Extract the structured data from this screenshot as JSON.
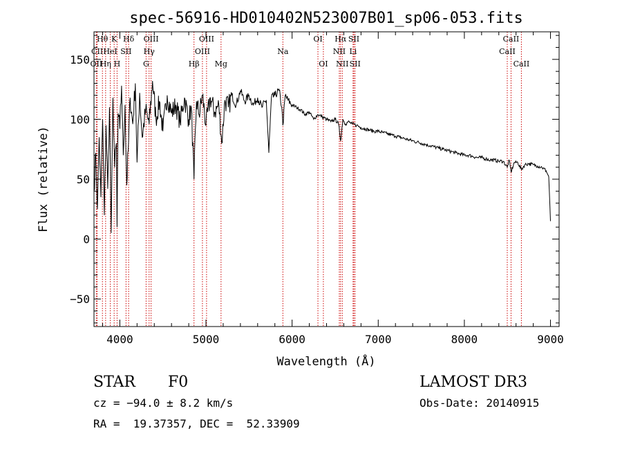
{
  "chart_data": {
    "type": "line",
    "title": "spec-56916-HD010402N523007B01_sp06-053.fits",
    "xlabel": "Wavelength (Å)",
    "ylabel": "Flux (relative)",
    "xlim": [
      3700,
      9100
    ],
    "ylim": [
      -73,
      173
    ],
    "xticks": [
      4000,
      5000,
      6000,
      7000,
      8000,
      9000
    ],
    "yticks": [
      -50,
      0,
      50,
      100,
      150
    ],
    "grid": false,
    "series": [
      {
        "name": "flux",
        "x": [
          3700,
          3720,
          3740,
          3760,
          3780,
          3800,
          3820,
          3840,
          3860,
          3880,
          3900,
          3920,
          3940,
          3960,
          3968,
          3980,
          4000,
          4020,
          4040,
          4060,
          4080,
          4102,
          4120,
          4150,
          4180,
          4200,
          4230,
          4260,
          4300,
          4340,
          4380,
          4420,
          4460,
          4500,
          4550,
          4600,
          4650,
          4700,
          4750,
          4800,
          4830,
          4861,
          4890,
          4920,
          4960,
          5000,
          5050,
          5100,
          5150,
          5183,
          5220,
          5260,
          5300,
          5350,
          5400,
          5450,
          5500,
          5550,
          5600,
          5650,
          5700,
          5730,
          5760,
          5800,
          5850,
          5880,
          5893,
          5920,
          5950,
          6000,
          6050,
          6100,
          6150,
          6200,
          6250,
          6300,
          6350,
          6400,
          6450,
          6500,
          6540,
          6563,
          6590,
          6620,
          6650,
          6700,
          6750,
          6800,
          6850,
          6900,
          6950,
          7000,
          7050,
          7100,
          7150,
          7200,
          7250,
          7300,
          7350,
          7400,
          7450,
          7500,
          7550,
          7600,
          7650,
          7700,
          7750,
          7800,
          7850,
          7900,
          7950,
          8000,
          8050,
          8100,
          8150,
          8200,
          8250,
          8300,
          8350,
          8400,
          8450,
          8498,
          8520,
          8542,
          8580,
          8620,
          8662,
          8700,
          8750,
          8800,
          8850,
          8900,
          8950,
          8980,
          9000
        ],
        "values": [
          40,
          72,
          25,
          85,
          35,
          100,
          20,
          95,
          42,
          110,
          5,
          118,
          60,
          80,
          10,
          105,
          92,
          128,
          70,
          112,
          45,
          82,
          118,
          96,
          130,
          64,
          122,
          85,
          108,
          96,
          132,
          100,
          115,
          90,
          120,
          105,
          112,
          98,
          118,
          100,
          110,
          50,
          115,
          104,
          120,
          95,
          118,
          106,
          112,
          80,
          116,
          110,
          120,
          112,
          124,
          115,
          120,
          112,
          118,
          110,
          116,
          72,
          118,
          120,
          124,
          110,
          95,
          120,
          116,
          112,
          110,
          108,
          104,
          106,
          100,
          104,
          102,
          100,
          98,
          100,
          96,
          82,
          100,
          96,
          98,
          96,
          95,
          93,
          92,
          91,
          90,
          90,
          89,
          88,
          87,
          86,
          85,
          84,
          83,
          82,
          81,
          80,
          79,
          78,
          77,
          76,
          75,
          74,
          73,
          72,
          71,
          70,
          70,
          69,
          68,
          68,
          67,
          66,
          66,
          65,
          65,
          60,
          66,
          56,
          64,
          64,
          58,
          62,
          63,
          62,
          61,
          60,
          57,
          52,
          15
        ]
      }
    ],
    "lines": [
      {
        "name": "Hθ",
        "x": 3798,
        "row": 0
      },
      {
        "name": "CII",
        "x": 3737,
        "row": 1
      },
      {
        "name": "OII",
        "x": 3727,
        "row": 2
      },
      {
        "name": "K",
        "x": 3934,
        "row": 0
      },
      {
        "name": "HeI",
        "x": 3889,
        "row": 1
      },
      {
        "name": "Hη",
        "x": 3835,
        "row": 2
      },
      {
        "name": "Hδ",
        "x": 4102,
        "row": 0
      },
      {
        "name": "SII",
        "x": 4072,
        "row": 1
      },
      {
        "name": "H",
        "x": 3968,
        "row": 2
      },
      {
        "name": "OIII",
        "x": 4363,
        "row": 0
      },
      {
        "name": "Hγ",
        "x": 4340,
        "row": 1
      },
      {
        "name": "G",
        "x": 4305,
        "row": 2
      },
      {
        "name": "OIII",
        "x": 5007,
        "row": 0
      },
      {
        "name": "OIII",
        "x": 4959,
        "row": 1
      },
      {
        "name": "Hβ",
        "x": 4861,
        "row": 2
      },
      {
        "name": "Mg",
        "x": 5175,
        "row": 2
      },
      {
        "name": "Na",
        "x": 5893,
        "row": 1
      },
      {
        "name": "OI",
        "x": 6300,
        "row": 0
      },
      {
        "name": "OI",
        "x": 6363,
        "row": 2
      },
      {
        "name": "Hα",
        "x": 6563,
        "row": 0
      },
      {
        "name": "NII",
        "x": 6548,
        "row": 1
      },
      {
        "name": "NII",
        "x": 6583,
        "row": 2
      },
      {
        "name": "SII",
        "x": 6717,
        "row": 0
      },
      {
        "name": "Li",
        "x": 6708,
        "row": 1
      },
      {
        "name": "SII",
        "x": 6731,
        "row": 2
      },
      {
        "name": "CaII",
        "x": 8542,
        "row": 0
      },
      {
        "name": "CaII",
        "x": 8498,
        "row": 1
      },
      {
        "name": "CaII",
        "x": 8662,
        "row": 2
      }
    ],
    "line_color": "#cc0000",
    "spectrum_color": "#000000"
  },
  "info": {
    "class": "STAR",
    "subclass": "F0",
    "survey": "LAMOST DR3",
    "cz": "cz = −94.0 ± 8.2 km/s",
    "obs_date": "Obs-Date: 20140915",
    "radec": "RA =  19.37357, DEC =  52.33909"
  }
}
